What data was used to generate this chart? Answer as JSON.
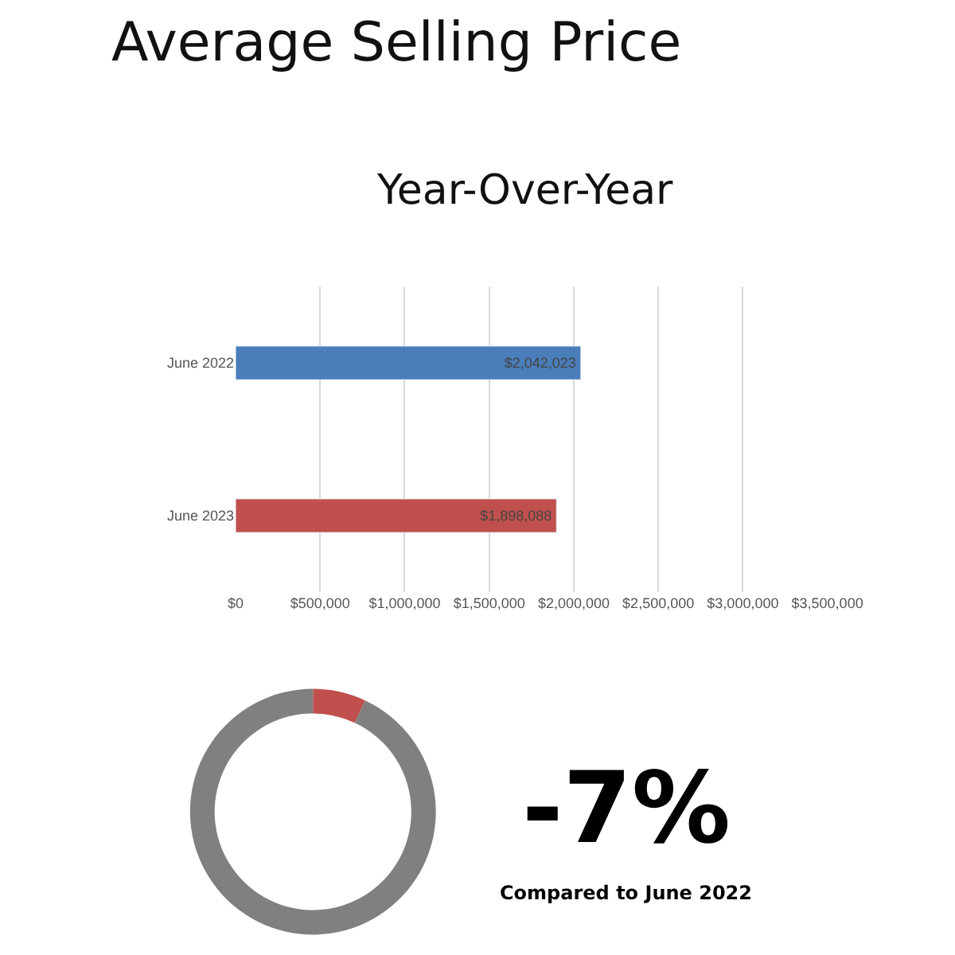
{
  "chart_data": [
    {
      "type": "bar",
      "title": "Average Selling Price",
      "subtitle": "Year-Over-Year",
      "orientation": "horizontal",
      "categories": [
        "June 2022",
        "June 2023"
      ],
      "values": [
        2042023,
        1898088
      ],
      "colors": [
        "#4a7ebb",
        "#c0504d"
      ],
      "value_labels": [
        "$2,042,023",
        "$1,898,088"
      ],
      "xlim": [
        0,
        3500000
      ],
      "xticks": [
        {
          "value": 0,
          "label": "$0"
        },
        {
          "value": 500000,
          "label": "$500,000"
        },
        {
          "value": 1000000,
          "label": "$1,000,000"
        },
        {
          "value": 1500000,
          "label": "$1,500,000"
        },
        {
          "value": 2000000,
          "label": "$2,000,000"
        },
        {
          "value": 2500000,
          "label": "$2,500,000"
        },
        {
          "value": 3000000,
          "label": "$3,000,000"
        },
        {
          "value": 3500000,
          "label": "$3,500,000"
        }
      ],
      "grid": "x",
      "legend": false
    },
    {
      "type": "donut",
      "categories": [
        null,
        null
      ],
      "values": [
        7,
        93
      ],
      "colors": [
        "#c0504d",
        "#808080"
      ],
      "annotations": [
        "-7%",
        "Compared to June 2022"
      ],
      "legend": false
    }
  ]
}
